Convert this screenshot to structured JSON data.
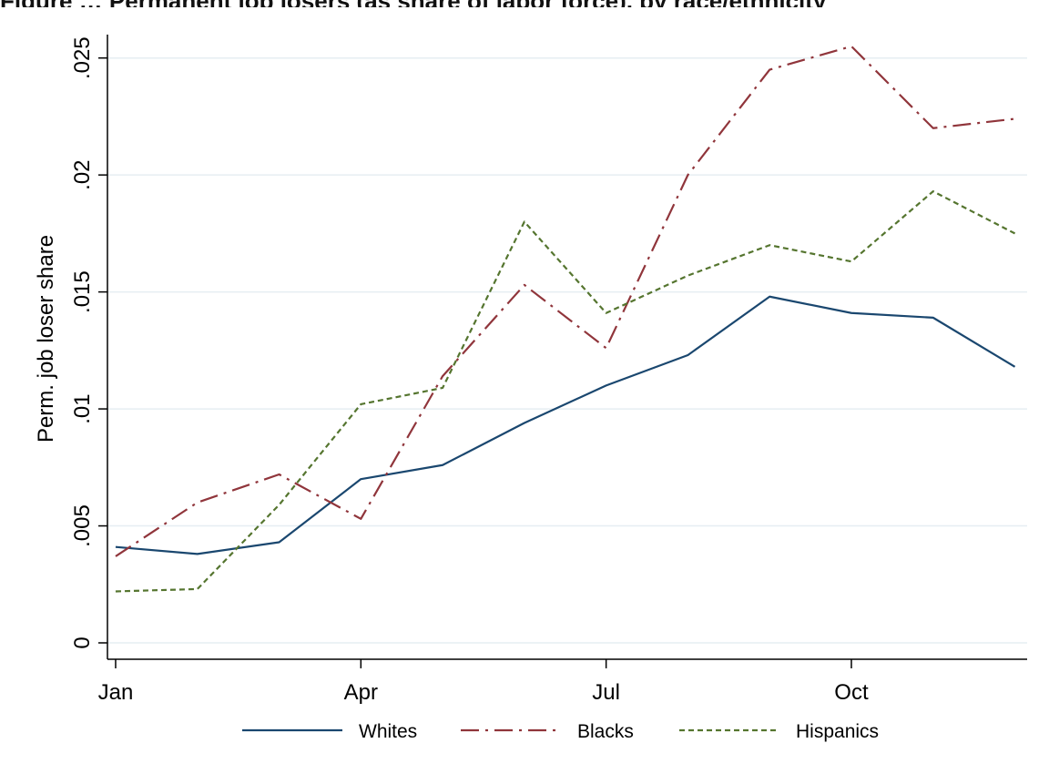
{
  "title": "Figure … Permanent job losers (as share of labor force), by race/ethnicity",
  "chart_data": {
    "type": "line",
    "title": "",
    "xlabel": "",
    "ylabel": "Perm. job loser share",
    "x": [
      1,
      2,
      3,
      4,
      5,
      6,
      7,
      8,
      9,
      10,
      11,
      12
    ],
    "xticks": [
      {
        "value": 1,
        "label": "Jan"
      },
      {
        "value": 4,
        "label": "Apr"
      },
      {
        "value": 7,
        "label": "Jul"
      },
      {
        "value": 10,
        "label": "Oct"
      }
    ],
    "yticks": [
      {
        "value": 0,
        "label": "0"
      },
      {
        "value": 0.005,
        "label": ".005"
      },
      {
        "value": 0.01,
        "label": ".01"
      },
      {
        "value": 0.015,
        "label": ".015"
      },
      {
        "value": 0.02,
        "label": ".02"
      },
      {
        "value": 0.025,
        "label": ".025"
      }
    ],
    "ylim": [
      0,
      0.026
    ],
    "xlim": [
      0.9,
      12.15
    ],
    "grid": true,
    "legend_position": "bottom",
    "series": [
      {
        "name": "Whites",
        "color": "#1a476f",
        "dash": "solid",
        "values": [
          0.0041,
          0.0038,
          0.0043,
          0.007,
          0.0076,
          0.0094,
          0.011,
          0.0123,
          0.0148,
          0.0141,
          0.0139,
          0.0118
        ]
      },
      {
        "name": "Blacks",
        "color": "#90353b",
        "dash": "dashdot",
        "values": [
          0.0037,
          0.006,
          0.0072,
          0.0053,
          0.0114,
          0.0153,
          0.0126,
          0.02,
          0.0245,
          0.0255,
          0.022,
          0.0224
        ]
      },
      {
        "name": "Hispanics",
        "color": "#55752f",
        "dash": "dash",
        "values": [
          0.0022,
          0.0023,
          0.0059,
          0.0102,
          0.0109,
          0.018,
          0.0141,
          0.0157,
          0.017,
          0.0163,
          0.0193,
          0.0175
        ]
      }
    ]
  }
}
